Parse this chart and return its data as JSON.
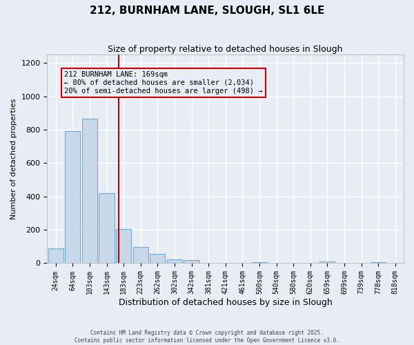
{
  "title1": "212, BURNHAM LANE, SLOUGH, SL1 6LE",
  "title2": "Size of property relative to detached houses in Slough",
  "xlabel": "Distribution of detached houses by size in Slough",
  "ylabel": "Number of detached properties",
  "bar_labels": [
    "24sqm",
    "64sqm",
    "103sqm",
    "143sqm",
    "183sqm",
    "223sqm",
    "262sqm",
    "302sqm",
    "342sqm",
    "381sqm",
    "421sqm",
    "461sqm",
    "500sqm",
    "540sqm",
    "580sqm",
    "620sqm",
    "659sqm",
    "699sqm",
    "739sqm",
    "778sqm",
    "818sqm"
  ],
  "bar_values": [
    90,
    790,
    865,
    420,
    205,
    95,
    55,
    22,
    18,
    0,
    0,
    0,
    7,
    0,
    0,
    0,
    10,
    0,
    0,
    8,
    0
  ],
  "bar_color": "#c8d8e8",
  "bar_edge_color": "#7aaac8",
  "background_color": "#e8ecf4",
  "grid_color": "#ffffff",
  "ylim": [
    0,
    1250
  ],
  "yticks": [
    0,
    200,
    400,
    600,
    800,
    1000,
    1200
  ],
  "property_line_color": "#cc0000",
  "annotation_text": "212 BURNHAM LANE: 169sqm\n← 80% of detached houses are smaller (2,034)\n20% of semi-detached houses are larger (498) →",
  "annotation_box_color": "#cc0000",
  "footer1": "Contains HM Land Registry data © Crown copyright and database right 2025.",
  "footer2": "Contains public sector information licensed under the Open Government Licence v3.0.",
  "property_bin_index": 3.72
}
